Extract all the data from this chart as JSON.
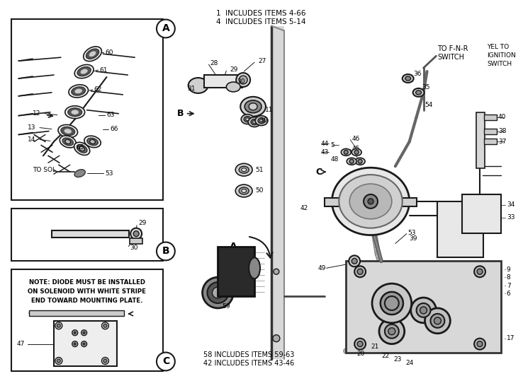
{
  "bg_color": "#ffffff",
  "fig_width": 7.38,
  "fig_height": 5.39,
  "dpi": 100,
  "top_notes": [
    "1  INCLUDES ITEMS 4-66",
    "4  INCLUDES ITEMS 5-14"
  ],
  "bottom_notes": [
    "58 INCLUDES ITEMS 59-63",
    "42 INCLUDES ITEMS 43-46"
  ],
  "box_C_note": [
    "NOTE: DIODE MUST BE INSTALLED",
    "ON SOLENOID WITH WHITE STRIPE",
    "END TOWARD MOUNTING PLATE."
  ],
  "line_color": "#1a1a1a",
  "text_color": "#000000"
}
